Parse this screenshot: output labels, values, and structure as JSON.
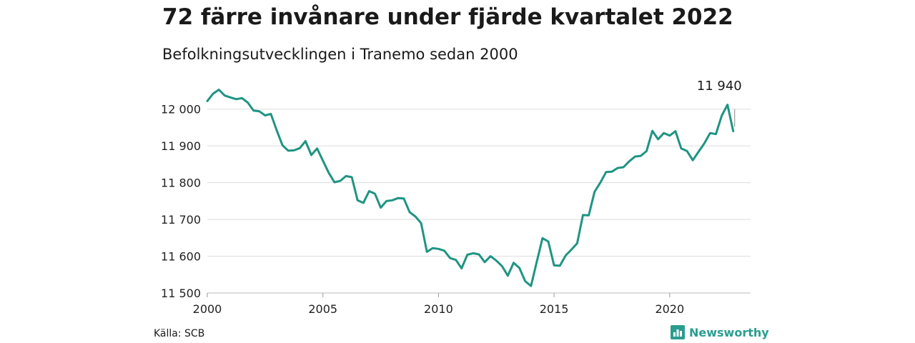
{
  "title": "72 färre invånare under fjärde kvartalet 2022",
  "subtitle": "Befolkningsutvecklingen i Tranemo sedan 2000",
  "source": "Källa: SCB",
  "brand": "Newsworthy",
  "colors": {
    "line": "#1f9483",
    "grid": "#dddddd",
    "brand": "#2a9d8f"
  },
  "chart_data": {
    "type": "line",
    "title": "72 färre invånare under fjärde kvartalet 2022",
    "subtitle": "Befolkningsutvecklingen i Tranemo sedan 2000",
    "xlabel": "",
    "ylabel": "",
    "xlim": [
      2000,
      2023.5
    ],
    "ylim": [
      11500,
      12050
    ],
    "x_ticks": [
      2000,
      2005,
      2010,
      2015,
      2020
    ],
    "x_tick_labels": [
      "2000",
      "2005",
      "2010",
      "2015",
      "2020"
    ],
    "y_ticks": [
      11500,
      11600,
      11700,
      11800,
      11900,
      12000
    ],
    "y_tick_labels": [
      "11 500",
      "11 600",
      "11 700",
      "11 800",
      "11 900",
      "12 000"
    ],
    "grid": true,
    "last_value_label": "11 940",
    "series": [
      {
        "values": [
          {
            "x": 2000.0,
            "y": 12022
          },
          {
            "x": 2000.25,
            "y": 12042
          },
          {
            "x": 2000.5,
            "y": 12053
          },
          {
            "x": 2000.75,
            "y": 12037
          },
          {
            "x": 2001.0,
            "y": 12032
          },
          {
            "x": 2001.25,
            "y": 12027
          },
          {
            "x": 2001.5,
            "y": 12030
          },
          {
            "x": 2001.75,
            "y": 12018
          },
          {
            "x": 2002.0,
            "y": 11996
          },
          {
            "x": 2002.25,
            "y": 11994
          },
          {
            "x": 2002.5,
            "y": 11983
          },
          {
            "x": 2002.75,
            "y": 11987
          },
          {
            "x": 2003.0,
            "y": 11943
          },
          {
            "x": 2003.25,
            "y": 11902
          },
          {
            "x": 2003.5,
            "y": 11887
          },
          {
            "x": 2003.75,
            "y": 11888
          },
          {
            "x": 2004.0,
            "y": 11894
          },
          {
            "x": 2004.25,
            "y": 11913
          },
          {
            "x": 2004.5,
            "y": 11875
          },
          {
            "x": 2004.75,
            "y": 11893
          },
          {
            "x": 2005.0,
            "y": 11860
          },
          {
            "x": 2005.25,
            "y": 11827
          },
          {
            "x": 2005.5,
            "y": 11801
          },
          {
            "x": 2005.75,
            "y": 11805
          },
          {
            "x": 2006.0,
            "y": 11818
          },
          {
            "x": 2006.25,
            "y": 11815
          },
          {
            "x": 2006.5,
            "y": 11752
          },
          {
            "x": 2006.75,
            "y": 11745
          },
          {
            "x": 2007.0,
            "y": 11777
          },
          {
            "x": 2007.25,
            "y": 11770
          },
          {
            "x": 2007.5,
            "y": 11732
          },
          {
            "x": 2007.75,
            "y": 11750
          },
          {
            "x": 2008.0,
            "y": 11752
          },
          {
            "x": 2008.25,
            "y": 11758
          },
          {
            "x": 2008.5,
            "y": 11757
          },
          {
            "x": 2008.75,
            "y": 11720
          },
          {
            "x": 2009.0,
            "y": 11708
          },
          {
            "x": 2009.25,
            "y": 11690
          },
          {
            "x": 2009.5,
            "y": 11612
          },
          {
            "x": 2009.75,
            "y": 11622
          },
          {
            "x": 2010.0,
            "y": 11620
          },
          {
            "x": 2010.25,
            "y": 11615
          },
          {
            "x": 2010.5,
            "y": 11595
          },
          {
            "x": 2010.75,
            "y": 11590
          },
          {
            "x": 2011.0,
            "y": 11567
          },
          {
            "x": 2011.25,
            "y": 11604
          },
          {
            "x": 2011.5,
            "y": 11608
          },
          {
            "x": 2011.75,
            "y": 11605
          },
          {
            "x": 2012.0,
            "y": 11584
          },
          {
            "x": 2012.25,
            "y": 11600
          },
          {
            "x": 2012.5,
            "y": 11588
          },
          {
            "x": 2012.75,
            "y": 11573
          },
          {
            "x": 2013.0,
            "y": 11547
          },
          {
            "x": 2013.25,
            "y": 11582
          },
          {
            "x": 2013.5,
            "y": 11568
          },
          {
            "x": 2013.75,
            "y": 11532
          },
          {
            "x": 2014.0,
            "y": 11519
          },
          {
            "x": 2014.25,
            "y": 11585
          },
          {
            "x": 2014.5,
            "y": 11649
          },
          {
            "x": 2014.75,
            "y": 11640
          },
          {
            "x": 2015.0,
            "y": 11575
          },
          {
            "x": 2015.25,
            "y": 11574
          },
          {
            "x": 2015.5,
            "y": 11602
          },
          {
            "x": 2015.75,
            "y": 11618
          },
          {
            "x": 2016.0,
            "y": 11635
          },
          {
            "x": 2016.25,
            "y": 11712
          },
          {
            "x": 2016.5,
            "y": 11711
          },
          {
            "x": 2016.75,
            "y": 11775
          },
          {
            "x": 2017.0,
            "y": 11800
          },
          {
            "x": 2017.25,
            "y": 11829
          },
          {
            "x": 2017.5,
            "y": 11830
          },
          {
            "x": 2017.75,
            "y": 11840
          },
          {
            "x": 2018.0,
            "y": 11842
          },
          {
            "x": 2018.25,
            "y": 11858
          },
          {
            "x": 2018.5,
            "y": 11871
          },
          {
            "x": 2018.75,
            "y": 11873
          },
          {
            "x": 2019.0,
            "y": 11886
          },
          {
            "x": 2019.25,
            "y": 11941
          },
          {
            "x": 2019.5,
            "y": 11918
          },
          {
            "x": 2019.75,
            "y": 11935
          },
          {
            "x": 2020.0,
            "y": 11928
          },
          {
            "x": 2020.25,
            "y": 11940
          },
          {
            "x": 2020.5,
            "y": 11893
          },
          {
            "x": 2020.75,
            "y": 11886
          },
          {
            "x": 2021.0,
            "y": 11861
          },
          {
            "x": 2021.25,
            "y": 11884
          },
          {
            "x": 2021.5,
            "y": 11907
          },
          {
            "x": 2021.75,
            "y": 11935
          },
          {
            "x": 2022.0,
            "y": 11932
          },
          {
            "x": 2022.25,
            "y": 11982
          },
          {
            "x": 2022.5,
            "y": 12012
          },
          {
            "x": 2022.75,
            "y": 11940
          }
        ]
      }
    ]
  }
}
